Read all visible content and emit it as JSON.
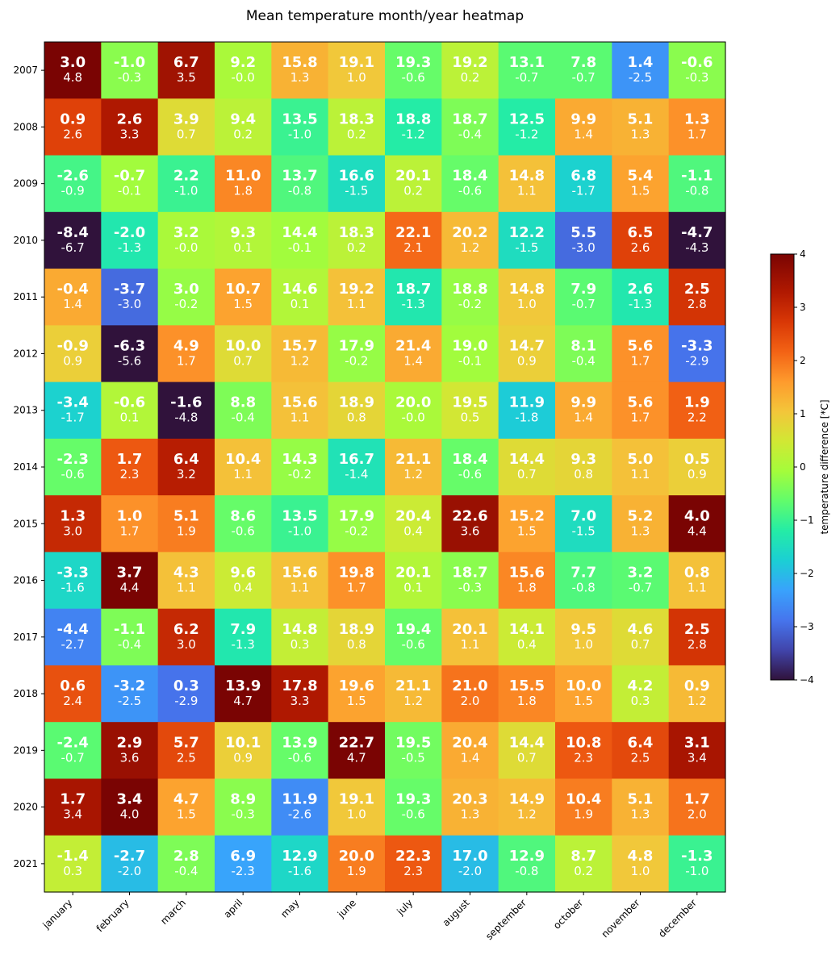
{
  "chart_data": {
    "type": "heatmap",
    "title": "Mean temperature month/year heatmap",
    "x_categories": [
      "january",
      "february",
      "march",
      "april",
      "may",
      "june",
      "july",
      "august",
      "september",
      "october",
      "november",
      "december"
    ],
    "y_categories": [
      "2007",
      "2008",
      "2009",
      "2010",
      "2011",
      "2012",
      "2013",
      "2014",
      "2015",
      "2016",
      "2017",
      "2018",
      "2019",
      "2020",
      "2021"
    ],
    "mean_values": [
      [
        "3.0",
        "-1.0",
        "6.7",
        "9.2",
        "15.8",
        "19.1",
        "19.3",
        "19.2",
        "13.1",
        "7.8",
        "1.4",
        "-0.6"
      ],
      [
        "0.9",
        "2.6",
        "3.9",
        "9.4",
        "13.5",
        "18.3",
        "18.8",
        "18.7",
        "12.5",
        "9.9",
        "5.1",
        "1.3"
      ],
      [
        "-2.6",
        "-0.7",
        "2.2",
        "11.0",
        "13.7",
        "16.6",
        "20.1",
        "18.4",
        "14.8",
        "6.8",
        "5.4",
        "-1.1"
      ],
      [
        "-8.4",
        "-2.0",
        "3.2",
        "9.3",
        "14.4",
        "18.3",
        "22.1",
        "20.2",
        "12.2",
        "5.5",
        "6.5",
        "-4.7"
      ],
      [
        "-0.4",
        "-3.7",
        "3.0",
        "10.7",
        "14.6",
        "19.2",
        "18.7",
        "18.8",
        "14.8",
        "7.9",
        "2.6",
        "2.5"
      ],
      [
        "-0.9",
        "-6.3",
        "4.9",
        "10.0",
        "15.7",
        "17.9",
        "21.4",
        "19.0",
        "14.7",
        "8.1",
        "5.6",
        "-3.3"
      ],
      [
        "-3.4",
        "-0.6",
        "-1.6",
        "8.8",
        "15.6",
        "18.9",
        "20.0",
        "19.5",
        "11.9",
        "9.9",
        "5.6",
        "1.9"
      ],
      [
        "-2.3",
        "1.7",
        "6.4",
        "10.4",
        "14.3",
        "16.7",
        "21.1",
        "18.4",
        "14.4",
        "9.3",
        "5.0",
        "0.5"
      ],
      [
        "1.3",
        "1.0",
        "5.1",
        "8.6",
        "13.5",
        "17.9",
        "20.4",
        "22.6",
        "15.2",
        "7.0",
        "5.2",
        "4.0"
      ],
      [
        "-3.3",
        "3.7",
        "4.3",
        "9.6",
        "15.6",
        "19.8",
        "20.1",
        "18.7",
        "15.6",
        "7.7",
        "3.2",
        "0.8"
      ],
      [
        "-4.4",
        "-1.1",
        "6.2",
        "7.9",
        "14.8",
        "18.9",
        "19.4",
        "20.1",
        "14.1",
        "9.5",
        "4.6",
        "2.5"
      ],
      [
        "0.6",
        "-3.2",
        "0.3",
        "13.9",
        "17.8",
        "19.6",
        "21.1",
        "21.0",
        "15.5",
        "10.0",
        "4.2",
        "0.9"
      ],
      [
        "-2.4",
        "2.9",
        "5.7",
        "10.1",
        "13.9",
        "22.7",
        "19.5",
        "20.4",
        "14.4",
        "10.8",
        "6.4",
        "3.1"
      ],
      [
        "1.7",
        "3.4",
        "4.7",
        "8.9",
        "11.9",
        "19.1",
        "19.3",
        "20.3",
        "14.9",
        "10.4",
        "5.1",
        "1.7"
      ],
      [
        "-1.4",
        "-2.7",
        "2.8",
        "6.9",
        "12.9",
        "20.0",
        "22.3",
        "17.0",
        "12.9",
        "8.7",
        "4.8",
        "-1.3"
      ]
    ],
    "difference_values": [
      [
        "4.8",
        "-0.3",
        "3.5",
        "-0.0",
        "1.3",
        "1.0",
        "-0.6",
        "0.2",
        "-0.7",
        "-0.7",
        "-2.5",
        "-0.3"
      ],
      [
        "2.6",
        "3.3",
        "0.7",
        "0.2",
        "-1.0",
        "0.2",
        "-1.2",
        "-0.4",
        "-1.2",
        "1.4",
        "1.3",
        "1.7"
      ],
      [
        "-0.9",
        "-0.1",
        "-1.0",
        "1.8",
        "-0.8",
        "-1.5",
        "0.2",
        "-0.6",
        "1.1",
        "-1.7",
        "1.5",
        "-0.8"
      ],
      [
        "-6.7",
        "-1.3",
        "-0.0",
        "0.1",
        "-0.1",
        "0.2",
        "2.1",
        "1.2",
        "-1.5",
        "-3.0",
        "2.6",
        "-4.3"
      ],
      [
        "1.4",
        "-3.0",
        "-0.2",
        "1.5",
        "0.1",
        "1.1",
        "-1.3",
        "-0.2",
        "1.0",
        "-0.7",
        "-1.3",
        "2.8"
      ],
      [
        "0.9",
        "-5.6",
        "1.7",
        "0.7",
        "1.2",
        "-0.2",
        "1.4",
        "-0.1",
        "0.9",
        "-0.4",
        "1.7",
        "-2.9"
      ],
      [
        "-1.7",
        "0.1",
        "-4.8",
        "-0.4",
        "1.1",
        "0.8",
        "-0.0",
        "0.5",
        "-1.8",
        "1.4",
        "1.7",
        "2.2"
      ],
      [
        "-0.6",
        "2.3",
        "3.2",
        "1.1",
        "-0.2",
        "-1.4",
        "1.2",
        "-0.6",
        "0.7",
        "0.8",
        "1.1",
        "0.9"
      ],
      [
        "3.0",
        "1.7",
        "1.9",
        "-0.6",
        "-1.0",
        "-0.2",
        "0.4",
        "3.6",
        "1.5",
        "-1.5",
        "1.3",
        "4.4"
      ],
      [
        "-1.6",
        "4.4",
        "1.1",
        "0.4",
        "1.1",
        "1.7",
        "0.1",
        "-0.3",
        "1.8",
        "-0.8",
        "-0.7",
        "1.1"
      ],
      [
        "-2.7",
        "-0.4",
        "3.0",
        "-1.3",
        "0.3",
        "0.8",
        "-0.6",
        "1.1",
        "0.4",
        "1.0",
        "0.7",
        "2.8"
      ],
      [
        "2.4",
        "-2.5",
        "-2.9",
        "4.7",
        "3.3",
        "1.5",
        "1.2",
        "2.0",
        "1.8",
        "1.5",
        "0.3",
        "1.2"
      ],
      [
        "-0.7",
        "3.6",
        "2.5",
        "0.9",
        "-0.6",
        "4.7",
        "-0.5",
        "1.4",
        "0.7",
        "2.3",
        "2.5",
        "3.4"
      ],
      [
        "3.4",
        "4.0",
        "1.5",
        "-0.3",
        "-2.6",
        "1.0",
        "-0.6",
        "1.3",
        "1.2",
        "1.9",
        "1.3",
        "2.0"
      ],
      [
        "0.3",
        "-2.0",
        "-0.4",
        "-2.3",
        "-1.6",
        "1.9",
        "2.3",
        "-2.0",
        "-0.8",
        "0.2",
        "1.0",
        "-1.0"
      ]
    ],
    "colorbar": {
      "label": "temperature difference [*C]",
      "range": [
        -4,
        4
      ],
      "ticks": [
        "4",
        "3",
        "2",
        "1",
        "0",
        "−1",
        "−2",
        "−3",
        "−4"
      ],
      "colormap": "turbo"
    }
  }
}
